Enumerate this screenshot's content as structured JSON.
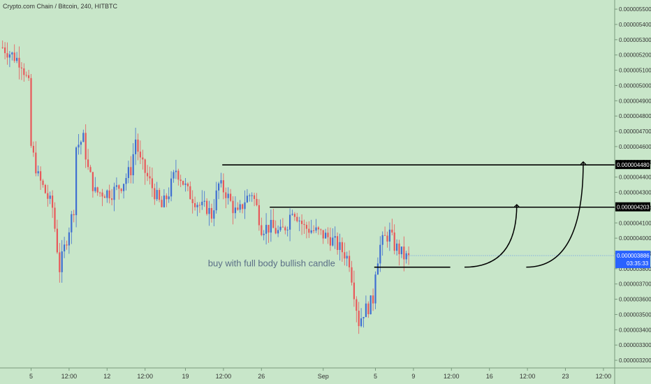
{
  "header": {
    "title": "Crypto.com Chain / Bitcoin, 240, HITBTC"
  },
  "colors": {
    "background": "#c8e6c9",
    "up": "#3f6fd1",
    "down": "#e8585a",
    "line": "#000000",
    "axis_text": "#333333",
    "price_badge": "#2962ff",
    "annotation_text": "#5a6e86"
  },
  "chart_data": {
    "type": "candlestick",
    "title": "Crypto.com Chain / Bitcoin, 240, HITBTC",
    "ylim": [
      3.15e-06,
      5.56e-06
    ],
    "y_ticks": [
      "0.000003200",
      "0.000003300",
      "0.000003400",
      "0.000003500",
      "0.000003600",
      "0.000003700",
      "0.000003800",
      "0.000003900",
      "0.000004000",
      "0.000004100",
      "0.000004200",
      "0.000004300",
      "0.000004400",
      "0.000004500",
      "0.000004600",
      "0.000004700",
      "0.000004800",
      "0.000004900",
      "0.000005000",
      "0.000005100",
      "0.000005200",
      "0.000005300",
      "0.000005400",
      "0.000005500"
    ],
    "x_ticks": [
      "5",
      "12:00",
      "12",
      "12:00",
      "19",
      "12:00",
      "26",
      "Sep",
      "5",
      "9",
      "12:00",
      "16",
      "12:00",
      "23",
      "12:00"
    ],
    "y_tick_values": [
      3.2e-06,
      3.3e-06,
      3.4e-06,
      3.5e-06,
      3.6e-06,
      3.7e-06,
      3.8e-06,
      3.9e-06,
      4e-06,
      4.1e-06,
      4.2e-06,
      4.3e-06,
      4.4e-06,
      4.5e-06,
      4.6e-06,
      4.7e-06,
      4.8e-06,
      4.9e-06,
      5e-06,
      5.1e-06,
      5.2e-06,
      5.3e-06,
      5.4e-06,
      5.5e-06
    ],
    "x_tick_bars": [
      12,
      28,
      44,
      60,
      77,
      93,
      109,
      135,
      157,
      173,
      189,
      205,
      221,
      237,
      253
    ],
    "path": [
      [
        0,
        5.25e-06
      ],
      [
        4,
        5.2e-06
      ],
      [
        8,
        5.15e-06
      ],
      [
        11,
        5e-06
      ],
      [
        12,
        4.6e-06
      ],
      [
        15,
        4.4e-06
      ],
      [
        18,
        4.3e-06
      ],
      [
        21,
        4.2e-06
      ],
      [
        24,
        3.8e-06
      ],
      [
        27,
        4e-06
      ],
      [
        30,
        4.2e-06
      ],
      [
        31,
        4.6e-06
      ],
      [
        34,
        4.65e-06
      ],
      [
        36,
        4.45e-06
      ],
      [
        39,
        4.3e-06
      ],
      [
        42,
        4.3e-06
      ],
      [
        46,
        4.3e-06
      ],
      [
        50,
        4.35e-06
      ],
      [
        54,
        4.45e-06
      ],
      [
        56,
        4.65e-06
      ],
      [
        58,
        4.5e-06
      ],
      [
        61,
        4.4e-06
      ],
      [
        64,
        4.3e-06
      ],
      [
        67,
        4.2e-06
      ],
      [
        70,
        4.3e-06
      ],
      [
        73,
        4.45e-06
      ],
      [
        75,
        4.4e-06
      ],
      [
        78,
        4.3e-06
      ],
      [
        81,
        4.25e-06
      ],
      [
        84,
        4.2e-06
      ],
      [
        86,
        4.2e-06
      ],
      [
        88,
        4.15e-06
      ],
      [
        91,
        4.35e-06
      ],
      [
        94,
        4.3e-06
      ],
      [
        97,
        4.2e-06
      ],
      [
        99,
        4.15e-06
      ],
      [
        102,
        4.25e-06
      ],
      [
        105,
        4.3e-06
      ],
      [
        107,
        4.2e-06
      ],
      [
        109,
        4.07e-06
      ],
      [
        113,
        4.07e-06
      ],
      [
        117,
        4.03e-06
      ],
      [
        120,
        4.1e-06
      ],
      [
        122,
        4.2e-06
      ],
      [
        124,
        4.15e-06
      ],
      [
        127,
        4.07e-06
      ],
      [
        131,
        4.05e-06
      ],
      [
        135,
        4.02e-06
      ],
      [
        138,
        4e-06
      ],
      [
        141,
        3.95e-06
      ],
      [
        144,
        3.9e-06
      ],
      [
        146,
        3.85e-06
      ],
      [
        148,
        3.65e-06
      ],
      [
        149,
        3.55e-06
      ],
      [
        150,
        3.45e-06
      ],
      [
        152,
        3.52e-06
      ],
      [
        154,
        3.55e-06
      ],
      [
        156,
        3.6e-06
      ],
      [
        157,
        3.8e-06
      ],
      [
        159,
        3.95e-06
      ],
      [
        161,
        4e-06
      ],
      [
        163,
        4.03e-06
      ],
      [
        165,
        3.95e-06
      ],
      [
        167,
        3.92e-06
      ],
      [
        169,
        3.88e-06
      ],
      [
        171,
        3.87e-06
      ]
    ],
    "horizontal_lines": [
      {
        "price": 4.48e-06,
        "from_bar": 93,
        "label": "0.000004480"
      },
      {
        "price": 4.203e-06,
        "from_bar": 113,
        "label": "0.000004203"
      },
      {
        "price": 3.81e-06,
        "from_bar": 157,
        "to_bar": 189
      }
    ],
    "current_price": {
      "label": "0.000003886",
      "countdown": "03:35:33",
      "price": 3.886e-06
    },
    "arrows": [
      {
        "from_bar": 195,
        "from_price": 3.81e-06,
        "to_bar": 217,
        "to_price": 4.22e-06
      },
      {
        "from_bar": 221,
        "from_price": 3.81e-06,
        "to_bar": 245,
        "to_price": 4.5e-06
      }
    ],
    "annotations": [
      {
        "text": "buy with full body bullish candle",
        "bar": 87,
        "price": 3.815e-06
      }
    ]
  }
}
